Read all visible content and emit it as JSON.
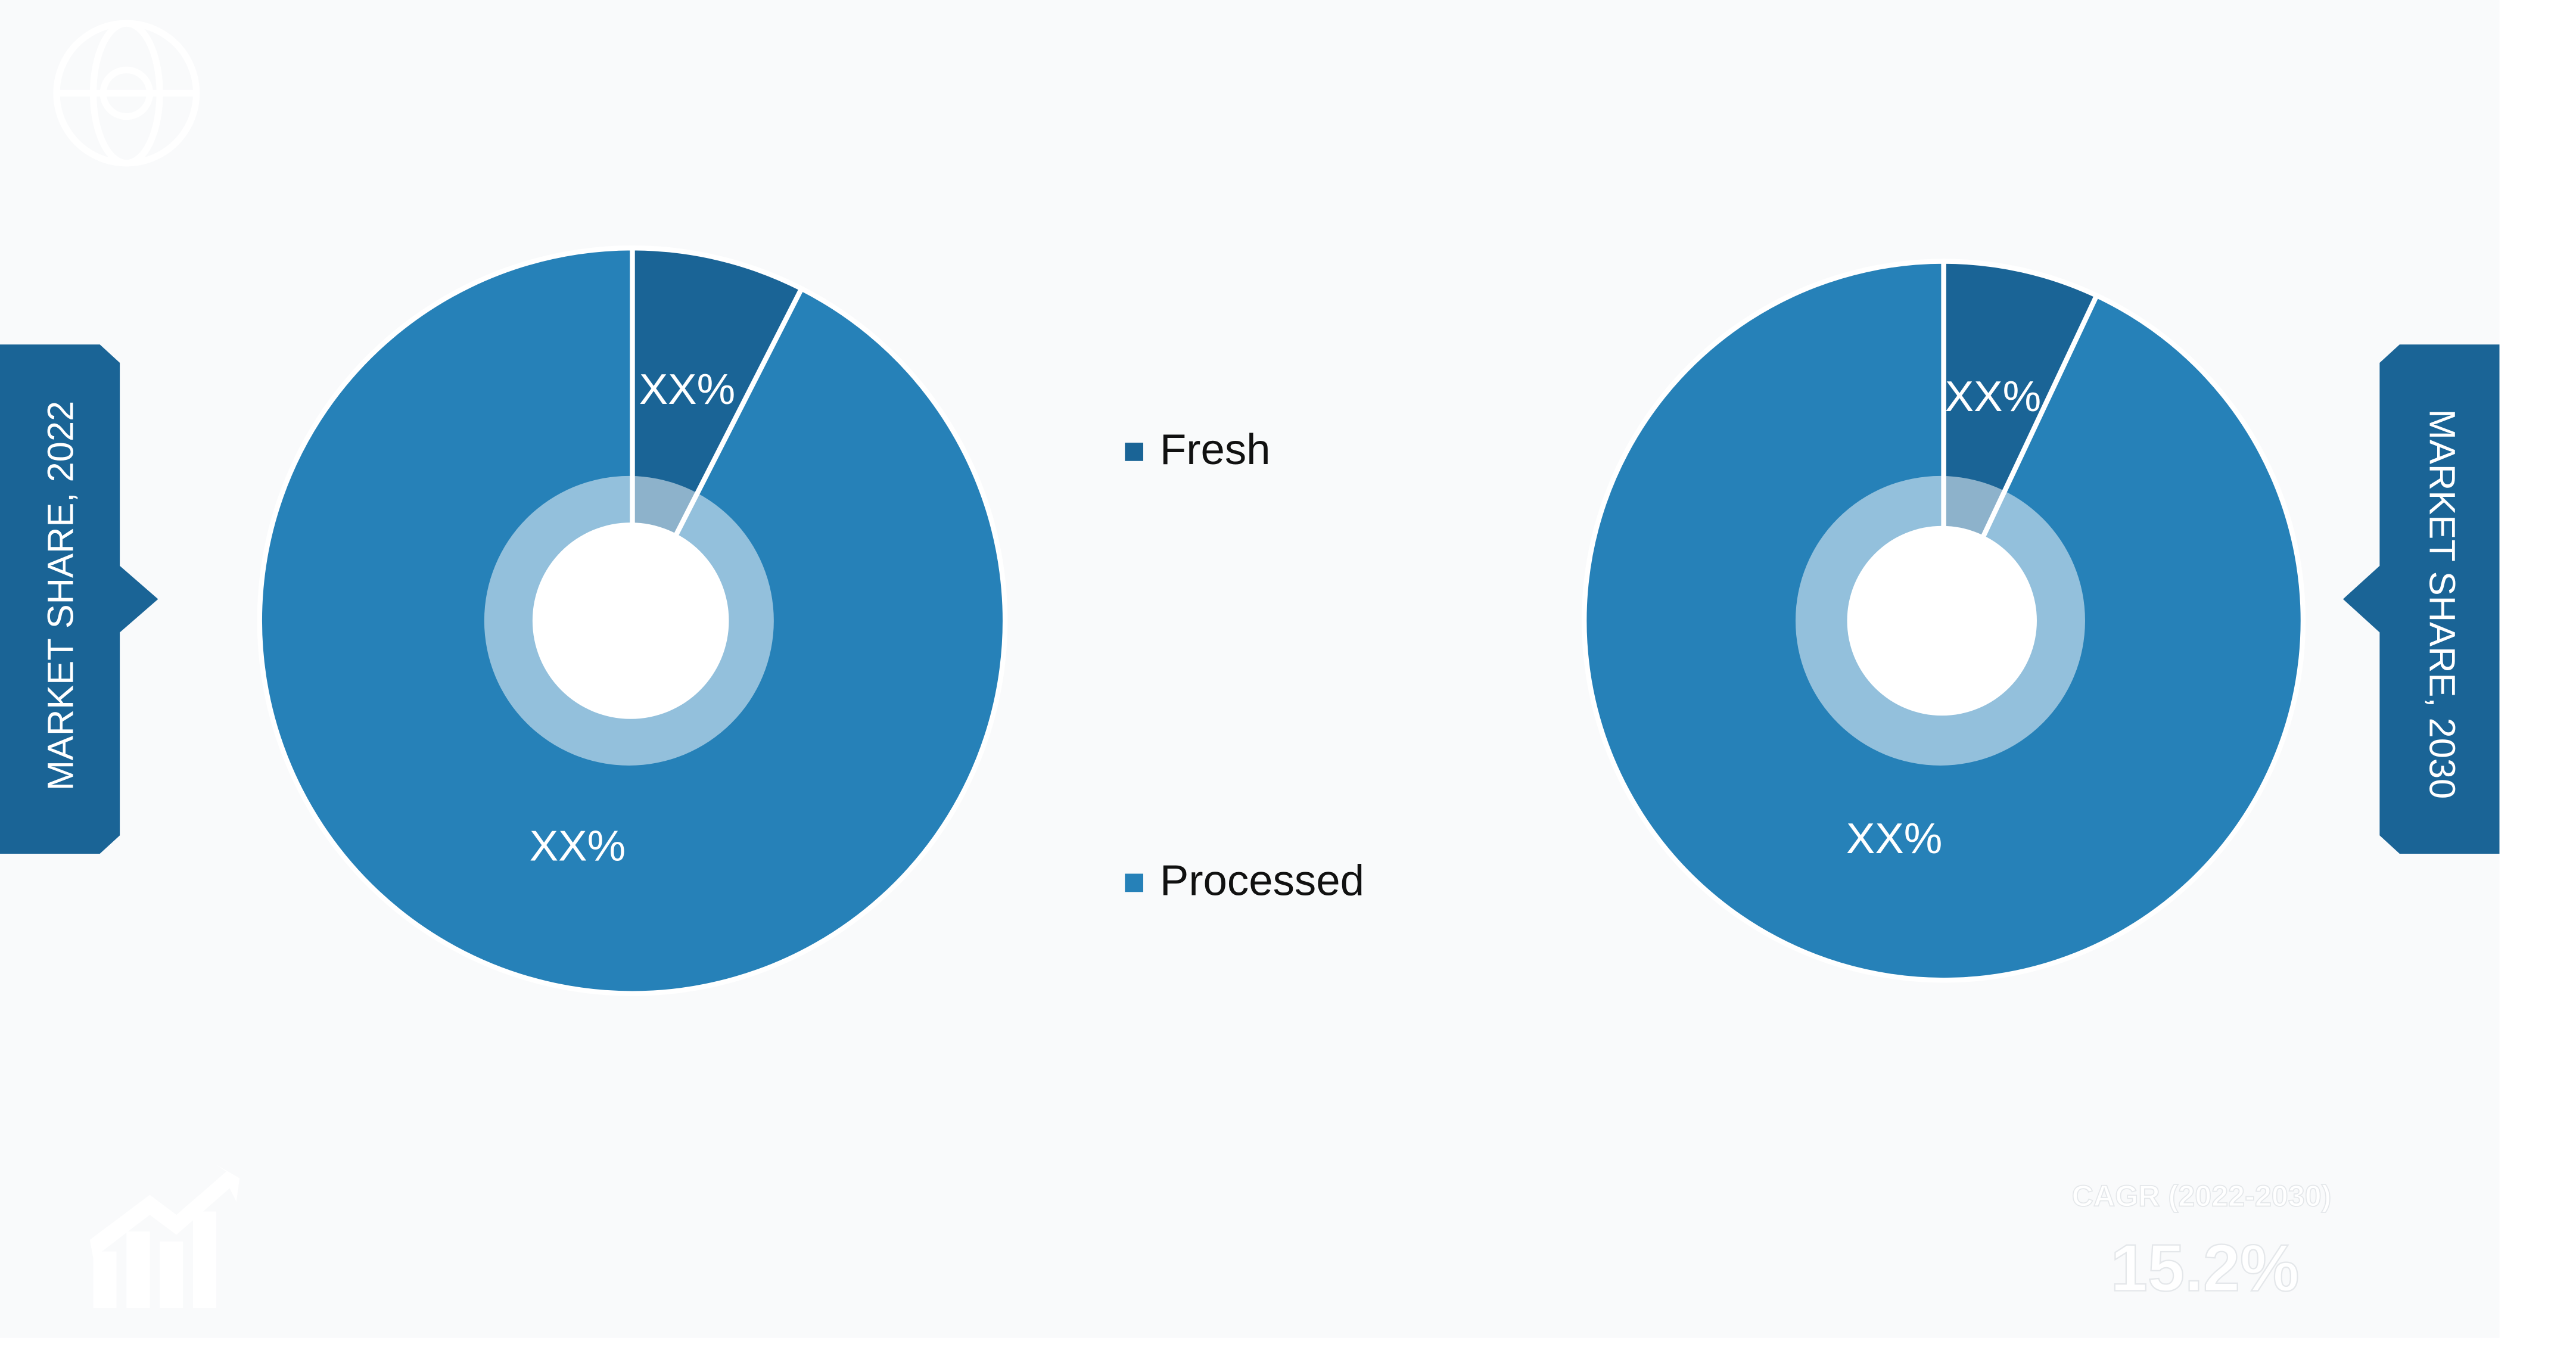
{
  "chart_data": [
    {
      "type": "pie",
      "title": "MARKET SHARE, 2022",
      "categories": [
        "Fresh",
        "Processed"
      ],
      "values": [
        7.5,
        92.5
      ],
      "value_labels": [
        "XX%",
        "XX%"
      ],
      "colors": [
        "#1a6496",
        "#2681b8"
      ]
    },
    {
      "type": "pie",
      "title": "MARKET SHARE, 2030",
      "values": [
        7,
        93
      ],
      "value_labels": [
        "XX%",
        "XX%"
      ],
      "colors": [
        "#1a6496",
        "#2681b8"
      ]
    }
  ],
  "cagr": {
    "label": "CAGR (2022-2030)",
    "value": "15.2%"
  }
}
